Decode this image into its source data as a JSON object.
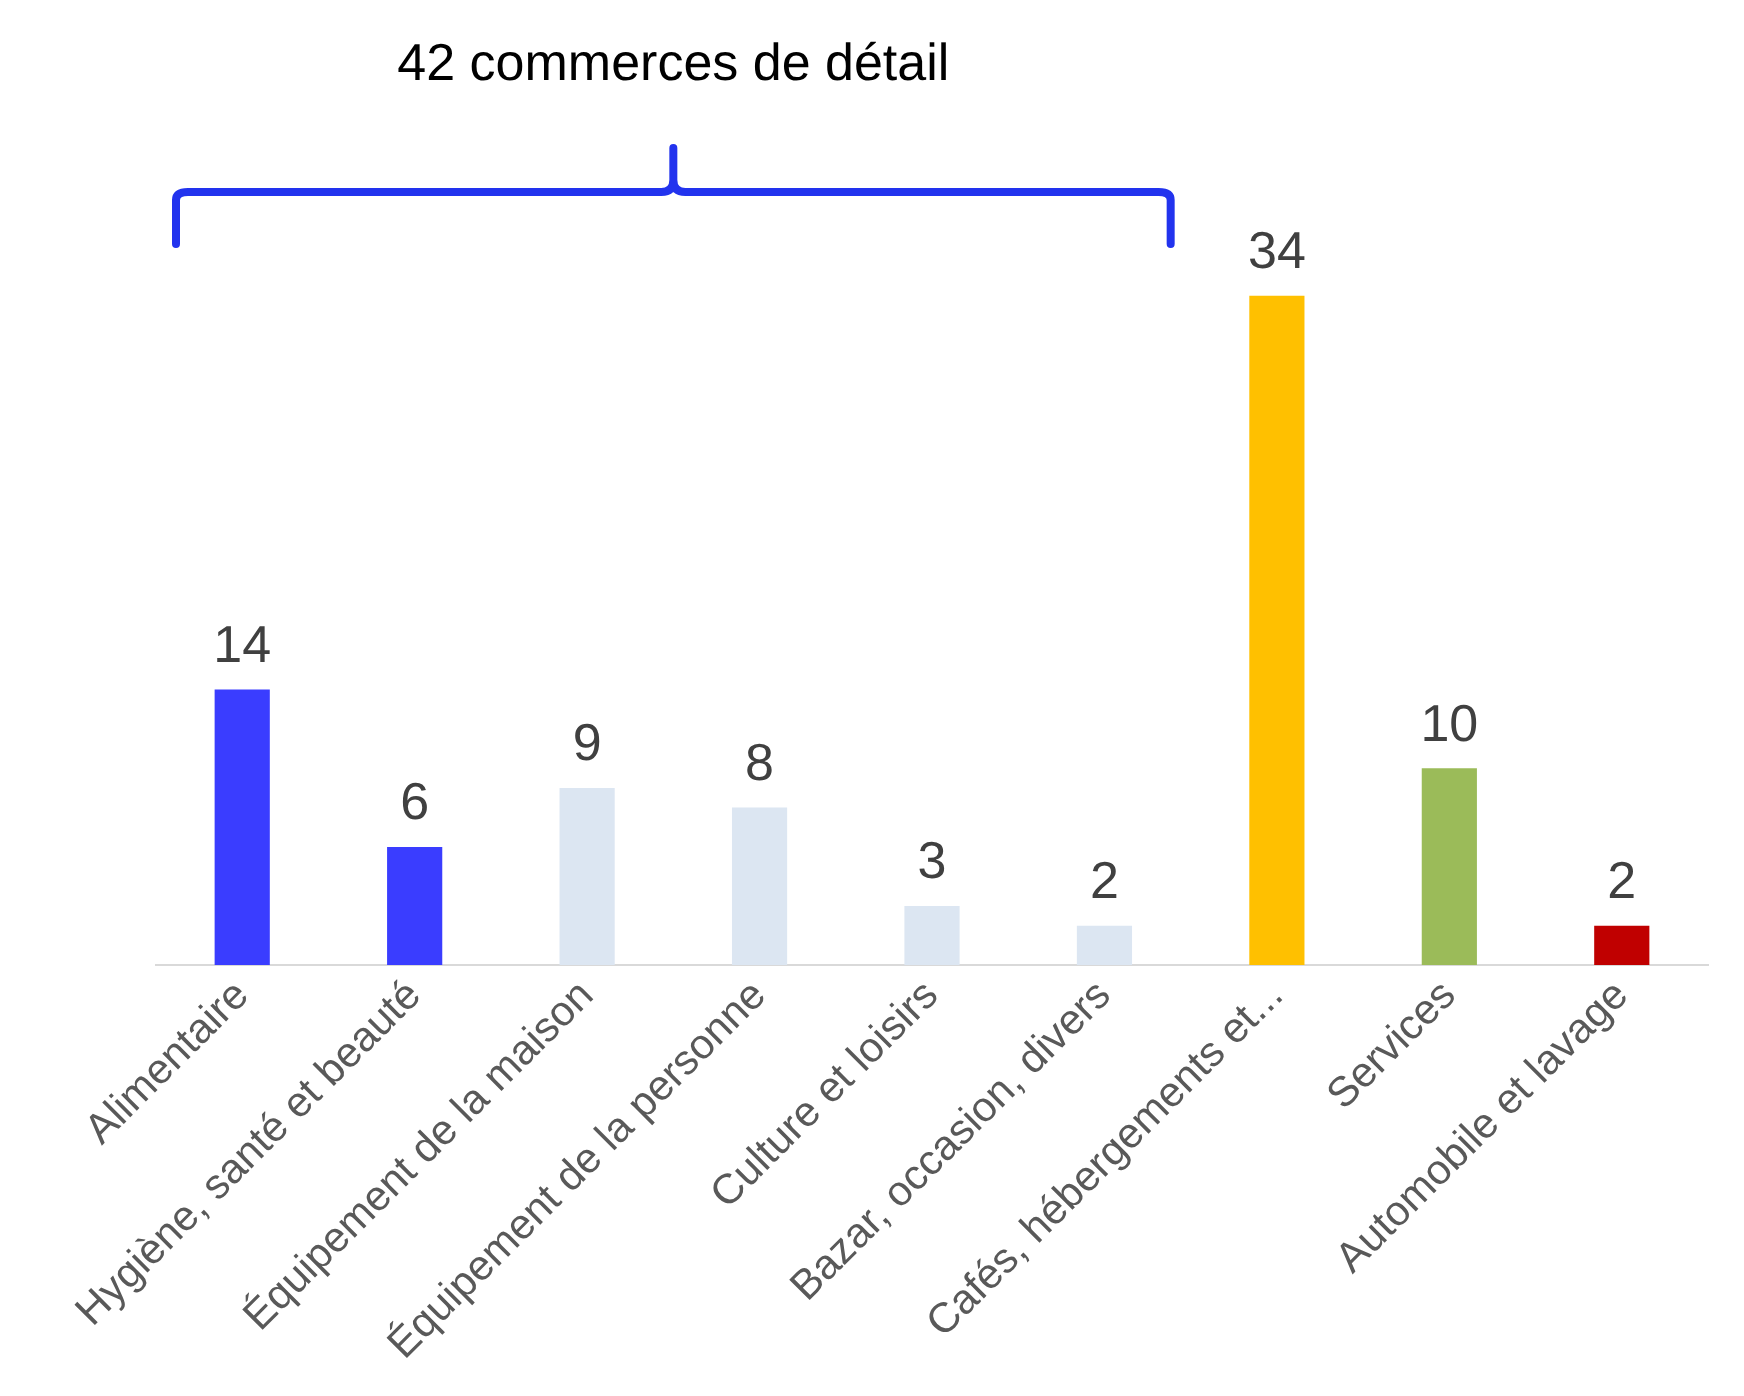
{
  "chart_data": {
    "type": "bar",
    "annotations": [
      "42 commerces de détail"
    ],
    "categories": [
      "Alimentaire",
      "Hygiène, santé et beauté",
      "Équipement de la maison",
      "Équipement de la personne",
      "Culture et loisirs",
      "Bazar, occasion, divers",
      "Cafés, hébergements et...",
      "Services",
      "Automobile et lavage"
    ],
    "values": [
      14,
      6,
      9,
      8,
      3,
      2,
      34,
      10,
      2
    ],
    "colors": [
      "#3a3dff",
      "#3a3dff",
      "#dce6f2",
      "#dce6f2",
      "#dce6f2",
      "#dce6f2",
      "#ffc000",
      "#9bbb59",
      "#c00000"
    ],
    "data_labels": true,
    "tick_labels": "x",
    "grid": false,
    "legend": false
  }
}
